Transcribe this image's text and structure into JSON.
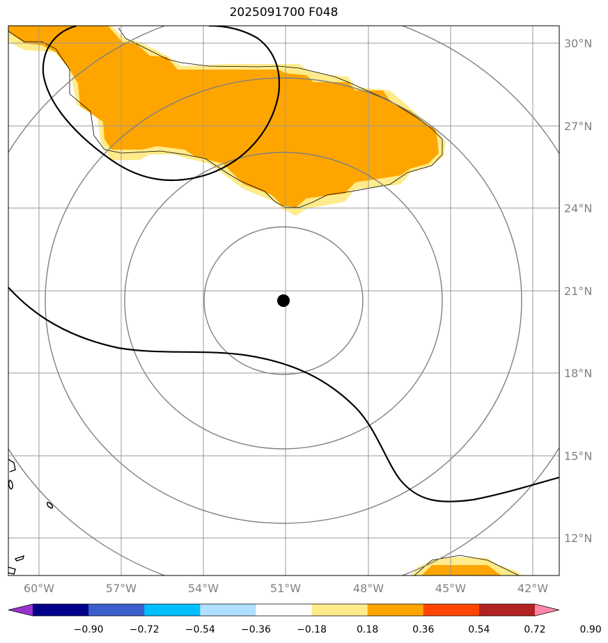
{
  "title": "2025091700 F048",
  "map": {
    "lon_range": [
      -61,
      -41.5
    ],
    "lat_range": [
      10.5,
      30.5
    ],
    "lon_ticks": [
      "60°W",
      "57°W",
      "54°W",
      "51°W",
      "48°W",
      "45°W",
      "42°W"
    ],
    "lat_ticks": [
      "30°N",
      "27°N",
      "24°N",
      "21°N",
      "18°N",
      "15°N",
      "12°N"
    ],
    "center_marker": {
      "lon": -51.0,
      "lat": 20.6
    },
    "range_rings_deg_radius": [
      2.7,
      5.4,
      8.1,
      10.8
    ],
    "grid": true
  },
  "colorbar": {
    "levels": [
      "−0.90",
      "−0.72",
      "−0.54",
      "−0.36",
      "−0.18",
      "0.18",
      "0.36",
      "0.54",
      "0.72",
      "0.90"
    ],
    "colors": [
      "#9932cc",
      "#00008b",
      "#3a5fcd",
      "#00bfff",
      "#b0e0ff",
      "#ffffff",
      "#ffeb8a",
      "#ffa500",
      "#ff4500",
      "#b22222",
      "#ff88aa"
    ],
    "extend": "both"
  },
  "fill_colors": {
    "light": "#ffeb8a",
    "dark": "#ffa500"
  }
}
